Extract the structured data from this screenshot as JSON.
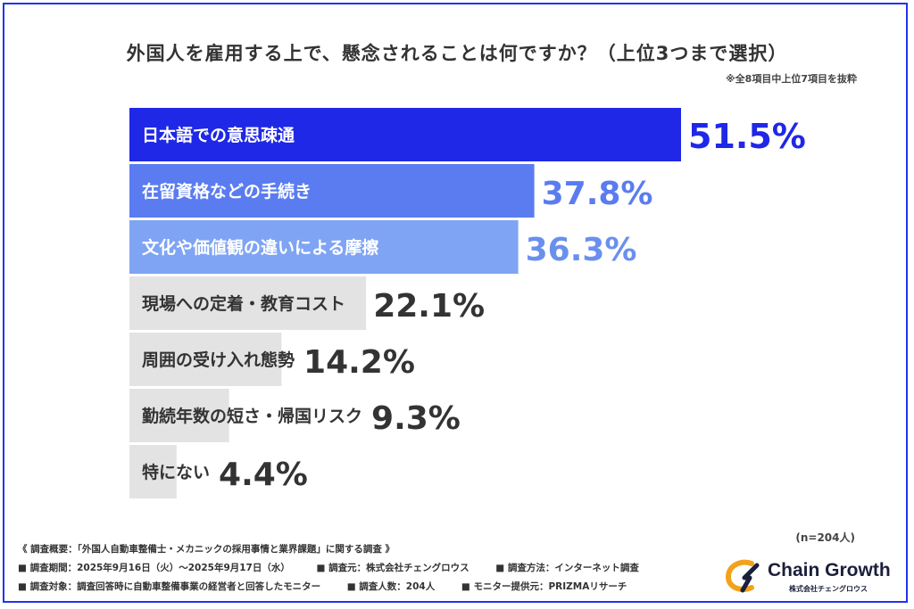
{
  "title": "外国人を雇用する上で、懸念されることは何ですか？（上位3つまで選択）",
  "subnote": "※全8項目中上位7項目を抜粋",
  "chart_data": {
    "type": "bar",
    "orientation": "horizontal",
    "categories": [
      "日本語での意思疎通",
      "在留資格などの手続き",
      "文化や価値観の違いによる摩擦",
      "現場への定着・教育コスト",
      "周囲の受け入れ態勢",
      "勤続年数の短さ・帰国リスク",
      "特にない"
    ],
    "values": [
      51.5,
      37.8,
      36.3,
      22.1,
      14.2,
      9.3,
      4.4
    ],
    "value_labels": [
      "51.5%",
      "37.8%",
      "36.3%",
      "22.1%",
      "14.2%",
      "9.3%",
      "4.4%"
    ],
    "unit": "%",
    "colors": [
      "#1f28e6",
      "#5a7cf0",
      "#7fa4f4",
      "#e3e3e3",
      "#e3e3e3",
      "#e3e3e3",
      "#e3e3e3"
    ],
    "label_colors": [
      "#ffffff",
      "#ffffff",
      "#ffffff",
      "#333333",
      "#333333",
      "#333333",
      "#333333"
    ],
    "value_colors": [
      "#1f28e6",
      "#5a7cf0",
      "#6a90ee",
      "#333333",
      "#333333",
      "#333333",
      "#333333"
    ],
    "title": "外国人を雇用する上で、懸念されることは何ですか？（上位3つまで選択）",
    "xlabel": "",
    "ylabel": "",
    "grid": false,
    "legend": "none"
  },
  "n_note": "(n=204人)",
  "footer": {
    "line1": "《 調査概要：「外国人自動車整備士・メカニックの採用事情と業界課題」に関する調査 》",
    "line2": [
      "■ 調査期間：2025年9月16日（火）～2025年9月17日（水）",
      "■ 調査元：株式会社チェングロウス",
      "■ 調査方法：インターネット調査"
    ],
    "line3": [
      "■ 調査対象：調査回答時に自動車整備事業の経営者と回答したモニター",
      "■ 調査人数：204人",
      "■ モニター提供元：PRIZMAリサーチ"
    ]
  },
  "logo": {
    "name": "Chain Growth",
    "sub": "株式会社チェングロウス",
    "colors": [
      "#f2a21b",
      "#1b1f3b"
    ]
  }
}
